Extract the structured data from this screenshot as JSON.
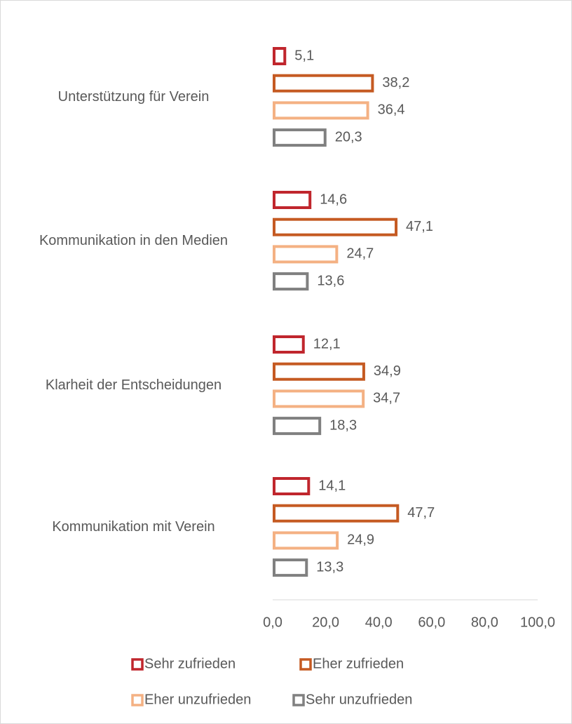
{
  "chart_data": {
    "type": "bar",
    "orientation": "horizontal",
    "categories": [
      "Unterstützung für Verein",
      "Kommunikation in den Medien",
      "Klarheit der Entscheidungen",
      "Kommunikation mit Verein"
    ],
    "series": [
      {
        "name": "Sehr zufrieden",
        "color": "#c0262d",
        "values": [
          5.1,
          14.6,
          12.1,
          14.1
        ],
        "value_labels": [
          "5,1",
          "14,6",
          "12,1",
          "14,1"
        ]
      },
      {
        "name": "Eher zufrieden",
        "color": "#c55a22",
        "values": [
          38.2,
          47.1,
          34.9,
          47.7
        ],
        "value_labels": [
          "38,2",
          "47,1",
          "34,9",
          "47,7"
        ]
      },
      {
        "name": "Eher unzufrieden",
        "color": "#f4b183",
        "values": [
          36.4,
          24.7,
          34.7,
          24.9
        ],
        "value_labels": [
          "36,4",
          "24,7",
          "34,7",
          "24,9"
        ]
      },
      {
        "name": "Sehr unzufrieden",
        "color": "#808080",
        "values": [
          20.3,
          13.6,
          18.3,
          13.3
        ],
        "value_labels": [
          "20,3",
          "13,6",
          "18,3",
          "13,3"
        ]
      }
    ],
    "xlim": [
      0,
      100
    ],
    "xticks": [
      {
        "value": 0,
        "label": "0,0"
      },
      {
        "value": 20,
        "label": "20,0"
      },
      {
        "value": 40,
        "label": "40,0"
      },
      {
        "value": 60,
        "label": "60,0"
      },
      {
        "value": 80,
        "label": "80,0"
      },
      {
        "value": 100,
        "label": "100,0"
      }
    ],
    "legend": "bottom"
  }
}
